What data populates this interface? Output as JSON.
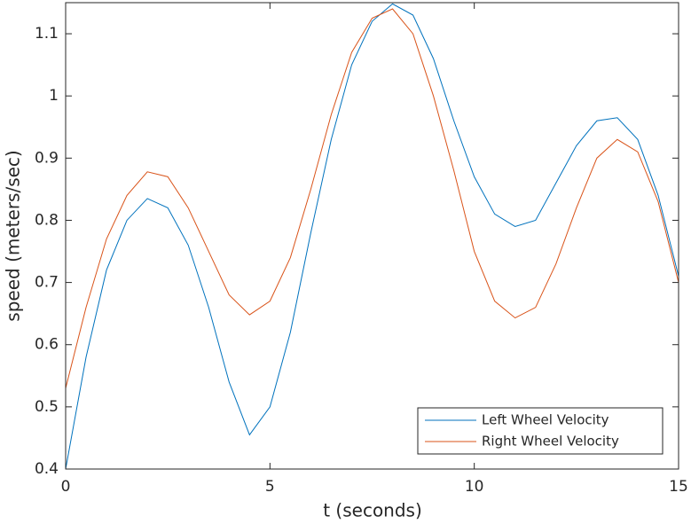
{
  "chart_data": {
    "type": "line",
    "xlabel": "t (seconds)",
    "ylabel": "speed (meters/sec)",
    "x": [
      0,
      0.5,
      1,
      1.5,
      2,
      2.5,
      3,
      3.5,
      4,
      4.5,
      5,
      5.5,
      6,
      6.5,
      7,
      7.5,
      8,
      8.5,
      9,
      9.5,
      10,
      10.5,
      11,
      11.5,
      12,
      12.5,
      13,
      13.5,
      14,
      14.5,
      15
    ],
    "series": [
      {
        "name": "Left Wheel Velocity",
        "color": "#0072bd",
        "values": [
          0.4,
          0.58,
          0.72,
          0.8,
          0.835,
          0.82,
          0.76,
          0.66,
          0.54,
          0.455,
          0.5,
          0.62,
          0.78,
          0.93,
          1.05,
          1.12,
          1.148,
          1.13,
          1.06,
          0.96,
          0.87,
          0.81,
          0.79,
          0.8,
          0.86,
          0.92,
          0.96,
          0.965,
          0.93,
          0.84,
          0.71
        ]
      },
      {
        "name": "Right Wheel Velocity",
        "color": "#d95319",
        "values": [
          0.53,
          0.66,
          0.77,
          0.84,
          0.878,
          0.87,
          0.82,
          0.75,
          0.68,
          0.648,
          0.67,
          0.74,
          0.85,
          0.97,
          1.07,
          1.125,
          1.14,
          1.1,
          1.0,
          0.88,
          0.75,
          0.67,
          0.643,
          0.66,
          0.73,
          0.82,
          0.9,
          0.93,
          0.91,
          0.83,
          0.7
        ]
      }
    ],
    "xlim": [
      0,
      15
    ],
    "xticks": [
      0,
      5,
      10,
      15
    ],
    "ylim": [
      0.4,
      1.15
    ],
    "yticks": [
      0.4,
      0.5,
      0.6,
      0.7,
      0.8,
      0.9,
      1,
      1.1
    ],
    "legend": "southeast"
  }
}
